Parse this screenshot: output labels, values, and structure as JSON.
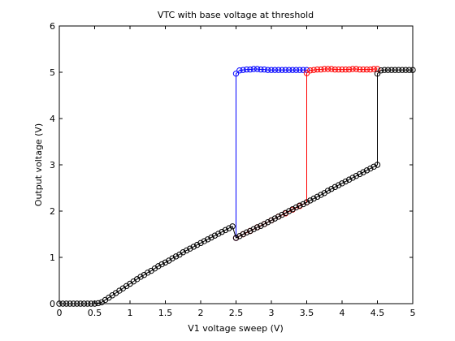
{
  "chart_data": {
    "type": "line",
    "title": "VTC with base voltage at threshold",
    "xlabel": "V1 voltage sweep (V)",
    "ylabel": "Output voltage (V)",
    "xlim": [
      0,
      5
    ],
    "ylim": [
      0,
      6
    ],
    "xticks": [
      "0",
      "0.5",
      "1",
      "1.5",
      "2",
      "2.5",
      "3",
      "3.5",
      "4",
      "4.5",
      "5"
    ],
    "yticks": [
      "0",
      "1",
      "2",
      "3",
      "4",
      "5",
      "6"
    ],
    "grid": false,
    "marker": "circle",
    "series": [
      {
        "color": "#0000ff",
        "x": [
          2.5,
          2.5,
          2.55,
          2.6,
          2.65,
          2.7,
          2.75,
          2.8,
          2.85,
          2.9,
          2.95,
          3.0,
          3.05,
          3.1,
          3.15,
          3.2,
          3.25,
          3.3,
          3.35,
          3.4,
          3.45,
          3.5
        ],
        "y": [
          1.42,
          4.97,
          5.04,
          5.05,
          5.06,
          5.06,
          5.07,
          5.07,
          5.06,
          5.06,
          5.05,
          5.05,
          5.05,
          5.05,
          5.05,
          5.05,
          5.05,
          5.05,
          5.05,
          5.05,
          5.05,
          5.05
        ]
      },
      {
        "color": "#ff0000",
        "x": [
          2.5,
          2.6,
          2.7,
          2.8,
          2.9,
          3.0,
          3.1,
          3.2,
          3.3,
          3.4,
          3.5,
          3.5,
          3.55,
          3.6,
          3.65,
          3.7,
          3.75,
          3.8,
          3.85,
          3.9,
          3.95,
          4.0,
          4.05,
          4.1,
          4.15,
          4.2,
          4.25,
          4.3,
          4.35,
          4.4,
          4.45,
          4.5
        ],
        "y": [
          1.42,
          1.5,
          1.57,
          1.65,
          1.72,
          1.8,
          1.88,
          1.95,
          2.03,
          2.11,
          2.19,
          4.98,
          5.04,
          5.05,
          5.06,
          5.06,
          5.07,
          5.07,
          5.07,
          5.06,
          5.06,
          5.06,
          5.06,
          5.06,
          5.07,
          5.07,
          5.06,
          5.06,
          5.06,
          5.06,
          5.07,
          5.07
        ]
      },
      {
        "color": "#000000",
        "x": [
          0,
          0.05,
          0.1,
          0.15,
          0.2,
          0.25,
          0.3,
          0.35,
          0.4,
          0.45,
          0.5,
          0.55,
          0.6,
          0.65,
          0.7,
          0.75,
          0.8,
          0.85,
          0.9,
          0.95,
          1.0,
          1.05,
          1.1,
          1.15,
          1.2,
          1.25,
          1.3,
          1.35,
          1.4,
          1.45,
          1.5,
          1.55,
          1.6,
          1.65,
          1.7,
          1.75,
          1.8,
          1.85,
          1.9,
          1.95,
          2.0,
          2.05,
          2.1,
          2.15,
          2.2,
          2.25,
          2.3,
          2.35,
          2.4,
          2.45,
          2.5,
          2.55,
          2.6,
          2.65,
          2.7,
          2.75,
          2.8,
          2.85,
          2.9,
          2.95,
          3.0,
          3.05,
          3.1,
          3.15,
          3.2,
          3.25,
          3.3,
          3.35,
          3.4,
          3.45,
          3.5,
          3.55,
          3.6,
          3.65,
          3.7,
          3.75,
          3.8,
          3.85,
          3.9,
          3.95,
          4.0,
          4.05,
          4.1,
          4.15,
          4.2,
          4.25,
          4.3,
          4.35,
          4.4,
          4.45,
          4.5,
          4.5,
          4.55,
          4.6,
          4.65,
          4.7,
          4.75,
          4.8,
          4.85,
          4.9,
          4.95,
          5.0
        ],
        "y": [
          0.0,
          0.0,
          0.0,
          0.0,
          0.0,
          0.0,
          0.0,
          0.0,
          0.0,
          0.0,
          0.0,
          0.01,
          0.03,
          0.08,
          0.13,
          0.18,
          0.23,
          0.28,
          0.33,
          0.38,
          0.43,
          0.48,
          0.53,
          0.58,
          0.62,
          0.67,
          0.71,
          0.76,
          0.81,
          0.85,
          0.89,
          0.93,
          0.98,
          1.02,
          1.06,
          1.11,
          1.15,
          1.19,
          1.23,
          1.27,
          1.31,
          1.35,
          1.39,
          1.43,
          1.47,
          1.51,
          1.55,
          1.59,
          1.63,
          1.67,
          1.42,
          1.46,
          1.5,
          1.54,
          1.57,
          1.61,
          1.65,
          1.68,
          1.72,
          1.76,
          1.8,
          1.84,
          1.88,
          1.92,
          1.96,
          2.0,
          2.04,
          2.08,
          2.12,
          2.15,
          2.19,
          2.23,
          2.27,
          2.31,
          2.35,
          2.39,
          2.44,
          2.48,
          2.52,
          2.56,
          2.6,
          2.64,
          2.68,
          2.72,
          2.76,
          2.8,
          2.84,
          2.88,
          2.92,
          2.96,
          3.0,
          4.97,
          5.04,
          5.05,
          5.05,
          5.05,
          5.05,
          5.05,
          5.05,
          5.05,
          5.05,
          5.05
        ]
      }
    ]
  }
}
